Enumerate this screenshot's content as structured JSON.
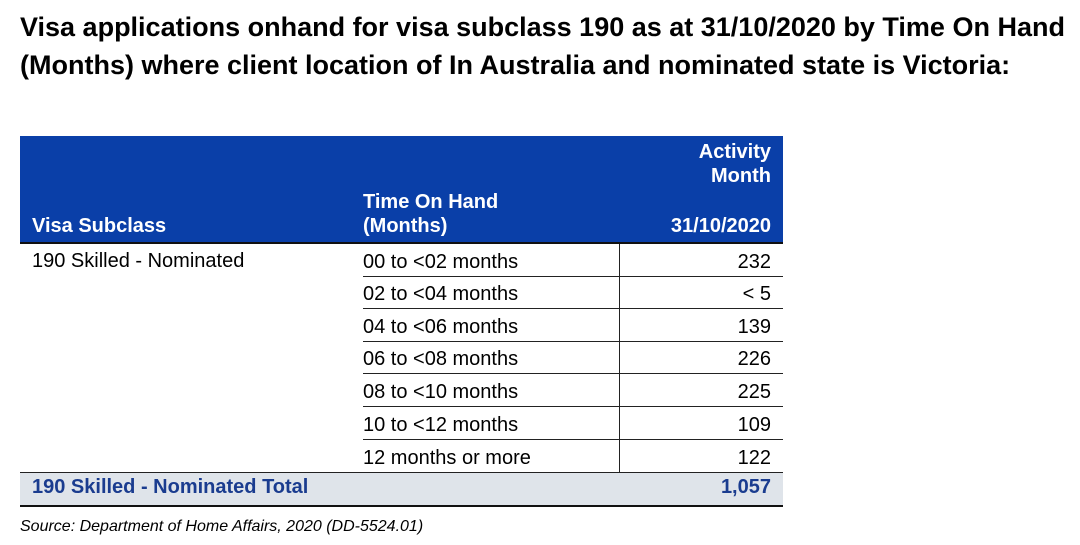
{
  "title": "Visa applications onhand for visa subclass 190 as at 31/10/2020 by Time On Hand (Months) where client location of In Australia and nominated state is Victoria:",
  "table": {
    "header": {
      "col1": "Visa Subclass",
      "col2_line1": "Time On Hand",
      "col2_line2": "(Months)",
      "col3_line1": "Activity",
      "col3_line2": "Month",
      "col3_date": "31/10/2020"
    },
    "subclass": "190 Skilled - Nominated",
    "rows": [
      {
        "range": "00 to <02 months",
        "value": "232"
      },
      {
        "range": "02 to <04 months",
        "value": "< 5"
      },
      {
        "range": "04 to <06 months",
        "value": "139"
      },
      {
        "range": "06 to <08 months",
        "value": "226"
      },
      {
        "range": "08 to <10 months",
        "value": "225"
      },
      {
        "range": "10 to <12 months",
        "value": "109"
      },
      {
        "range": "12 months or more",
        "value": "122"
      }
    ],
    "total_label": "190 Skilled - Nominated Total",
    "total_value": "1,057"
  },
  "source": "Source: Department of Home Affairs, 2020 (DD-5524.01)",
  "colors": {
    "header_bg": "#0a3fa8",
    "total_bg": "#dfe4ea",
    "total_text": "#1a3c8f"
  }
}
